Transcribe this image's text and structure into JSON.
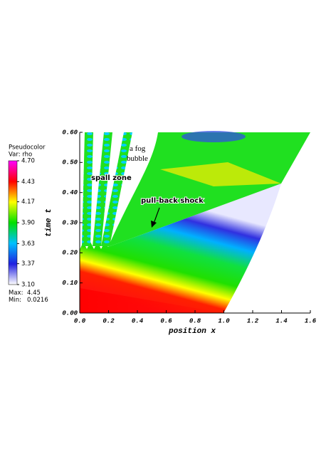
{
  "chart_data": {
    "type": "pseudocolor",
    "legend": {
      "title": "Pseudocolor",
      "variable": "Var: rho",
      "range": [
        3.1,
        4.7
      ],
      "ticks": [
        {
          "value": 4.7,
          "label": "4.70"
        },
        4.43,
        4.17,
        {
          "value": 3.9,
          "label": "3.90"
        },
        3.63,
        3.37,
        {
          "value": 3.1,
          "label": "3.10"
        }
      ],
      "colormap": [
        "#ffffff",
        "#2020e0",
        "#00c0ff",
        "#00e000",
        "#ffff00",
        "#ff0000",
        "#ff00ff"
      ],
      "max_label": "Max:",
      "max": 4.45,
      "min_label": "Min:",
      "min": 0.0216
    },
    "xlabel": "position x",
    "ylabel": "time t",
    "xlim": [
      0,
      1.6
    ],
    "ylim": [
      0,
      0.6
    ],
    "xticks": [
      {
        "value": 0,
        "label": "0.0"
      },
      0.2,
      0.4,
      0.6,
      0.8,
      {
        "value": 1,
        "label": "1.0"
      },
      1.2,
      1.4,
      1.6
    ],
    "yticks": [
      {
        "value": 0,
        "label": "0.00"
      },
      {
        "value": 0.1,
        "label": "0.10"
      },
      {
        "value": 0.2,
        "label": "0.20"
      },
      {
        "value": 0.3,
        "label": "0.30"
      },
      {
        "value": 0.4,
        "label": "0.40"
      },
      {
        "value": 0.5,
        "label": "0.50"
      },
      {
        "value": 0.6,
        "label": "0.60"
      }
    ],
    "annotations": [
      {
        "text": "spall zone"
      },
      {
        "text": "pull-back shock"
      },
      {
        "lines": [
          "a fog",
          "bubble"
        ]
      }
    ]
  }
}
